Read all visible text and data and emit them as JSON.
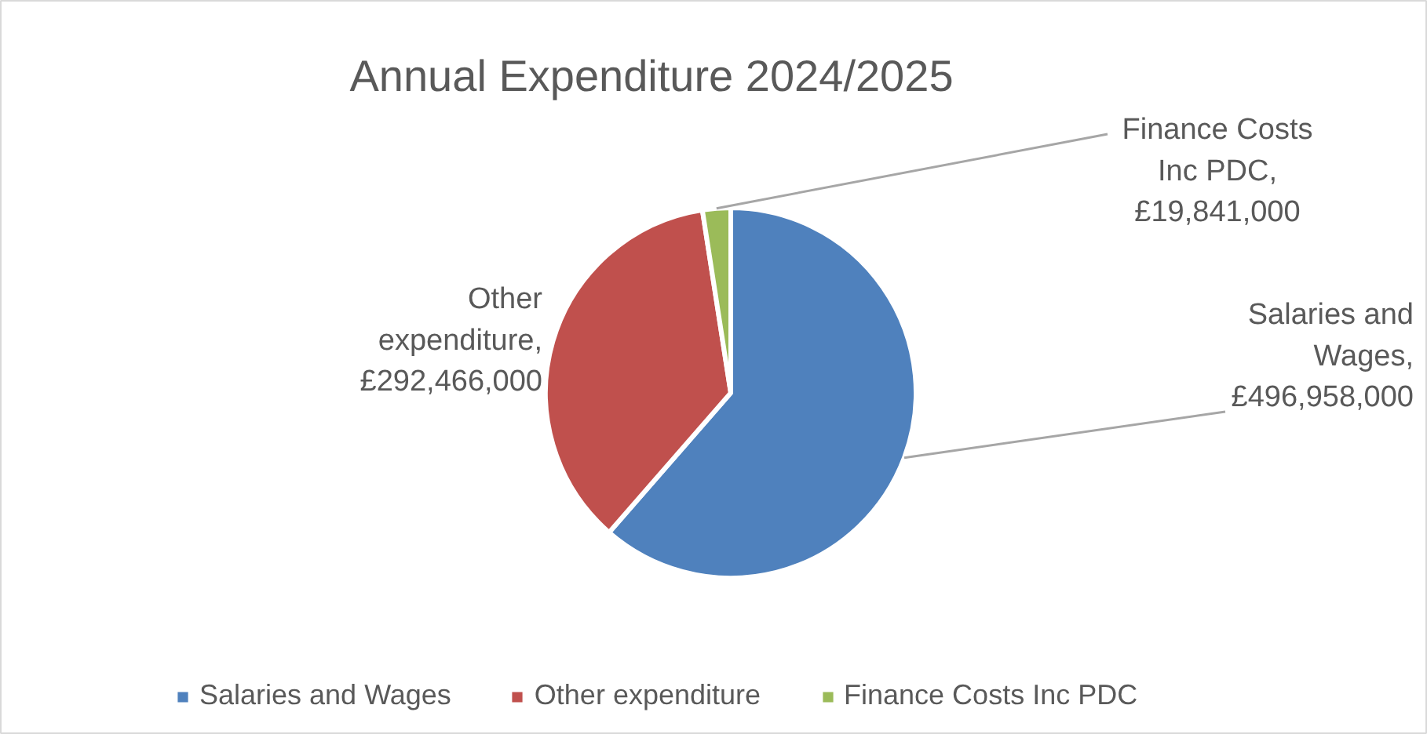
{
  "chart_data": {
    "type": "pie",
    "title": "Annual Expenditure 2024/2025",
    "categories": [
      "Salaries and Wages",
      "Other expenditure",
      "Finance Costs Inc PDC"
    ],
    "values": [
      496958000,
      292466000,
      19841000
    ],
    "colors": [
      "#4f81bd",
      "#c0504d",
      "#9bbb59"
    ],
    "value_labels": [
      "Salaries and Wages, £496,958,000",
      "Other expenditure, £292,466,000",
      "Finance Costs Inc PDC, £19,841,000"
    ],
    "legend": "bottom"
  }
}
